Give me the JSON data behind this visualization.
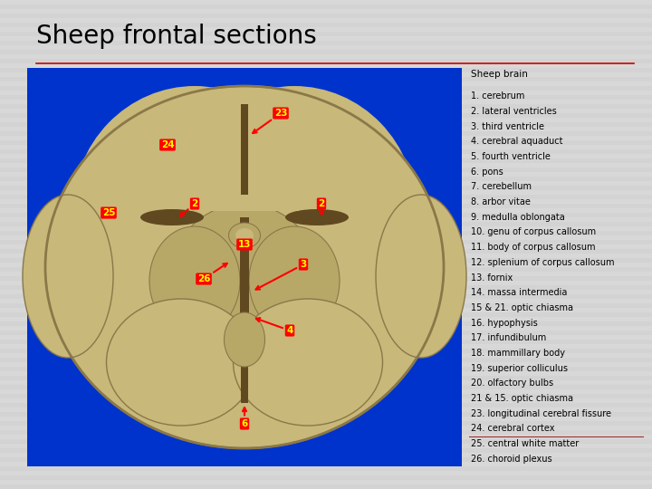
{
  "title": "Sheep frontal sections",
  "title_fontsize": 20,
  "background_color": "#d8d8d8",
  "image_bg": "#0033cc",
  "divider_line_color": "#cc0000",
  "legend_title": "Sheep brain",
  "legend_items": [
    "1. cerebrum",
    "2. lateral ventricles",
    "3. third ventricle",
    "4. cerebral aquaduct",
    "5. fourth ventricle",
    "6. pons",
    "7. cerebellum",
    "8. arbor vitae",
    "9. medulla oblongata",
    "10. genu of corpus callosum",
    "11. body of corpus callosum",
    "12. splenium of corpus callosum",
    "13. fornix",
    "14. massa intermedia",
    "15 & 21. optic chiasma",
    "16. hypophysis",
    "17. infundibulum",
    "18. mammillary body",
    "19. superior colliculus",
    "20. olfactory bulbs",
    "21 & 15. optic chiasma",
    "23. longitudinal cerebral fissure",
    "24. cerebral cortex",
    "25. central white matter",
    "26. choroid plexus"
  ],
  "legend_fontsize": 7.0,
  "legend_title_fontsize": 7.5,
  "text_color": "#000000",
  "brain_outer_color": "#c8b87a",
  "brain_inner_color": "#b8a868",
  "brain_dark_color": "#8a7848",
  "brain_ventricle_color": "#7a6838",
  "brain_deep_color": "#604820"
}
